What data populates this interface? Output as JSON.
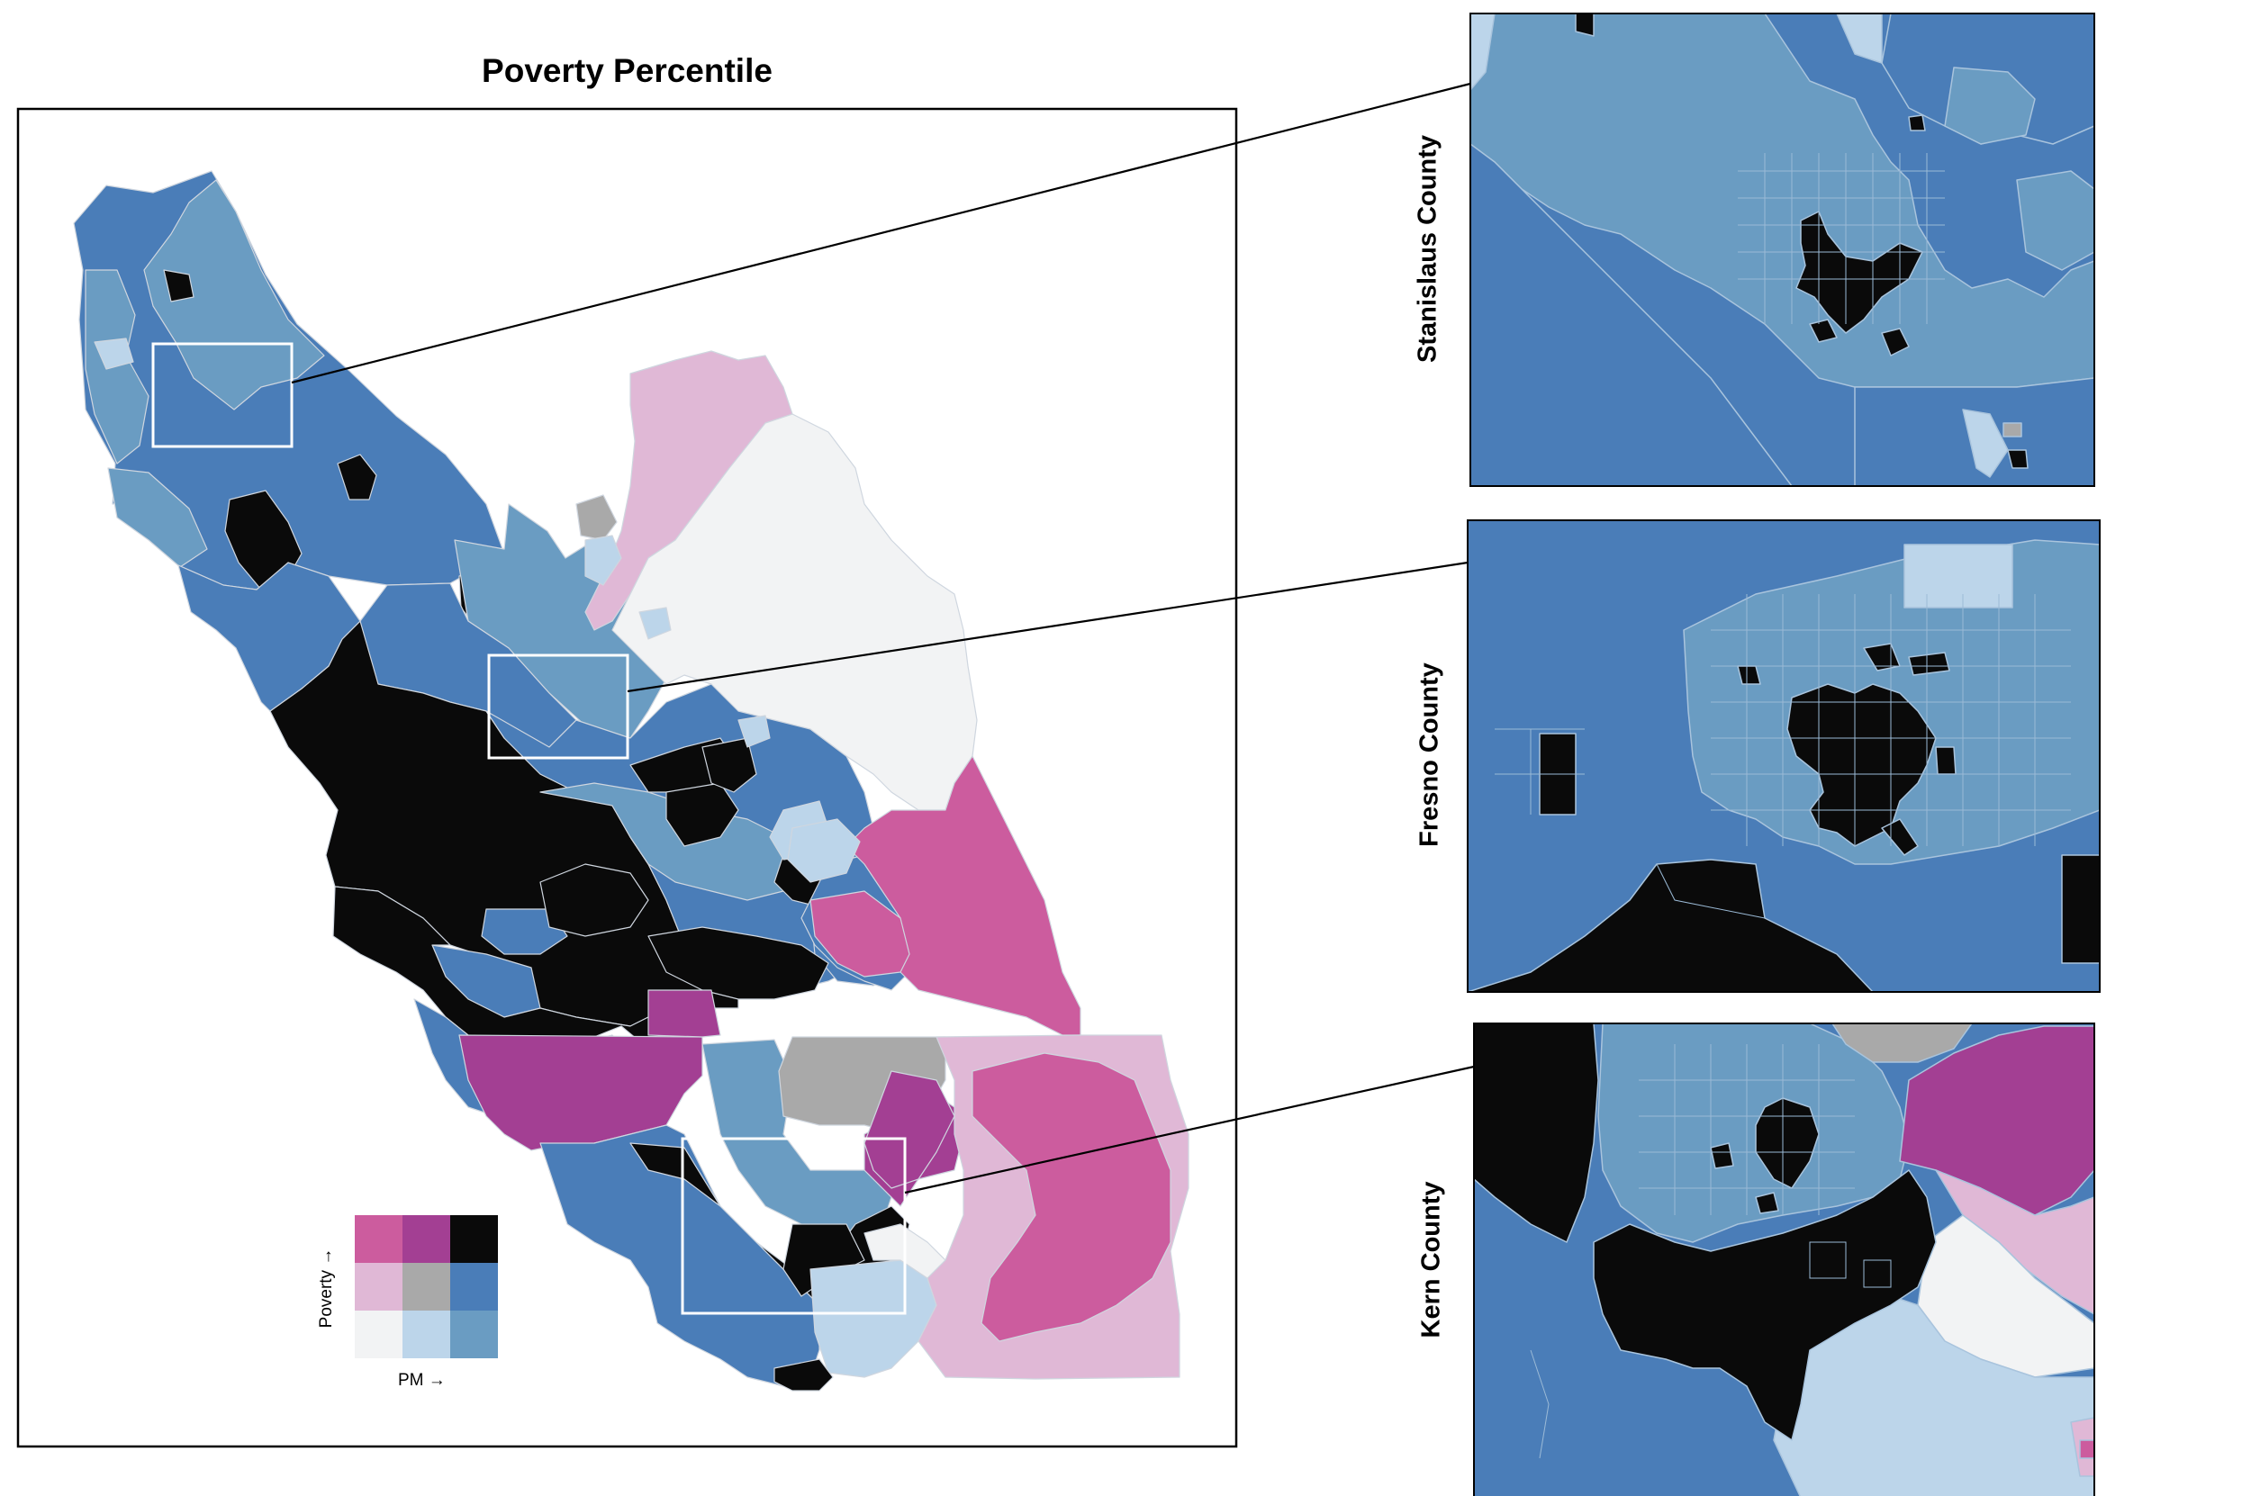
{
  "title": "Poverty Percentile",
  "insets": [
    {
      "label": "Stanislaus County"
    },
    {
      "label": "Fresno County"
    },
    {
      "label": "Kern County"
    }
  ],
  "legend": {
    "y_label": "Poverty →",
    "x_label": "PM →"
  },
  "palette": {
    "black": "#0a0a0a",
    "blue_dark": "#4a7db8",
    "blue_mid": "#6a9cc2",
    "blue_light": "#bcd5ea",
    "gray": "#a9a9a9",
    "white": "#f2f3f4",
    "pink_light": "#e0b8d6",
    "pink": "#cc5c9e",
    "purple": "#a33f93"
  }
}
